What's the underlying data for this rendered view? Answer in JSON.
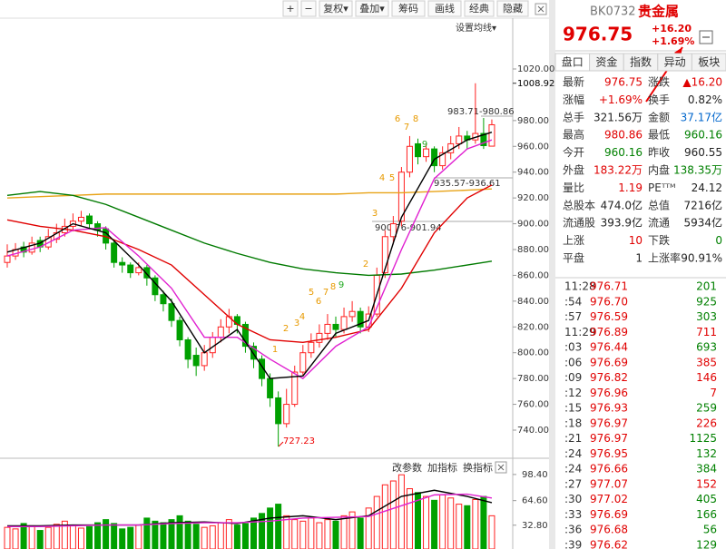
{
  "toolbar": {
    "buttons": [
      "+",
      "−",
      "复权▾",
      "叠加▾",
      "筹码",
      "画线",
      "经典",
      "隐藏"
    ],
    "ma_settings": "设置均线▾"
  },
  "chart_data": {
    "type": "candlestick",
    "candles": [
      [
        870,
        884,
        866,
        875
      ],
      [
        875,
        885,
        872,
        880
      ],
      [
        882,
        886,
        874,
        878
      ],
      [
        878,
        890,
        876,
        885
      ],
      [
        887,
        890,
        878,
        882
      ],
      [
        882,
        896,
        880,
        890
      ],
      [
        888,
        900,
        885,
        893
      ],
      [
        893,
        904,
        890,
        898
      ],
      [
        898,
        908,
        894,
        902
      ],
      [
        902,
        910,
        898,
        905
      ],
      [
        906,
        908,
        896,
        900
      ],
      [
        900,
        902,
        890,
        895
      ],
      [
        896,
        898,
        880,
        885
      ],
      [
        885,
        888,
        866,
        870
      ],
      [
        870,
        874,
        862,
        868
      ],
      [
        868,
        870,
        858,
        862
      ],
      [
        862,
        870,
        860,
        866
      ],
      [
        866,
        868,
        852,
        858
      ],
      [
        858,
        860,
        840,
        845
      ],
      [
        845,
        848,
        832,
        838
      ],
      [
        838,
        842,
        820,
        825
      ],
      [
        825,
        828,
        805,
        810
      ],
      [
        810,
        812,
        788,
        795
      ],
      [
        798,
        804,
        782,
        790
      ],
      [
        790,
        806,
        786,
        800
      ],
      [
        800,
        816,
        796,
        812
      ],
      [
        812,
        826,
        808,
        820
      ],
      [
        820,
        834,
        815,
        828
      ],
      [
        828,
        830,
        815,
        822
      ],
      [
        822,
        824,
        800,
        805
      ],
      [
        805,
        808,
        788,
        795
      ],
      [
        795,
        798,
        774,
        780
      ],
      [
        780,
        784,
        758,
        765
      ],
      [
        765,
        770,
        727.23,
        745
      ],
      [
        745,
        772,
        742,
        760
      ],
      [
        760,
        790,
        758,
        785
      ],
      [
        785,
        806,
        782,
        800
      ],
      [
        800,
        815,
        796,
        808
      ],
      [
        808,
        822,
        804,
        815
      ],
      [
        815,
        830,
        810,
        822
      ],
      [
        822,
        828,
        812,
        818
      ],
      [
        818,
        835,
        815,
        828
      ],
      [
        828,
        840,
        824,
        832
      ],
      [
        832,
        835,
        815,
        820
      ],
      [
        820,
        836,
        816,
        830
      ],
      [
        830,
        866,
        828,
        860
      ],
      [
        862,
        895,
        858,
        890
      ],
      [
        890,
        906,
        884,
        900
      ],
      [
        902,
        944,
        898,
        940
      ],
      [
        940,
        968,
        936,
        960
      ],
      [
        962,
        966,
        946,
        952
      ],
      [
        952,
        962,
        948,
        958
      ],
      [
        958,
        960,
        940,
        945
      ],
      [
        945,
        960,
        942,
        955
      ],
      [
        955,
        968,
        950,
        962
      ],
      [
        962,
        975,
        958,
        968
      ],
      [
        968,
        972,
        958,
        965
      ],
      [
        965,
        1008.92,
        962,
        970
      ],
      [
        970,
        982,
        958,
        960.55
      ],
      [
        960.16,
        980.86,
        960.16,
        976.75
      ]
    ],
    "ylim": [
      721.7,
      1059.4
    ],
    "yticks": [
      {
        "value": 740,
        "label": "740.00"
      },
      {
        "value": 760,
        "label": "760.00"
      },
      {
        "value": 780,
        "label": "780.00"
      },
      {
        "value": 800,
        "label": "800.00"
      },
      {
        "value": 820,
        "label": "820.00"
      },
      {
        "value": 840,
        "label": "840.00"
      },
      {
        "value": 860,
        "label": "860.00"
      },
      {
        "value": 880,
        "label": "880.00"
      },
      {
        "value": 900,
        "label": "900.00"
      },
      {
        "value": 920,
        "label": "920.00"
      },
      {
        "value": 940,
        "label": "940.00"
      },
      {
        "value": 960,
        "label": "960.00"
      },
      {
        "value": 980,
        "label": "980.00"
      },
      {
        "value": 1020,
        "label": "1020.00"
      }
    ],
    "max_label": {
      "value": 1008.92,
      "label": "1008.92"
    },
    "ma_x": [
      0,
      4,
      8,
      12,
      16,
      20,
      24,
      28,
      32,
      36,
      40,
      44,
      48,
      52,
      56,
      59
    ],
    "ma_series": [
      {
        "color": "#e8a317",
        "values": [
          920,
          921,
          922,
          923,
          923,
          923,
          923,
          923,
          923,
          923,
          923,
          924,
          924,
          925,
          926,
          927
        ]
      },
      {
        "color": "#007a00",
        "values": [
          922,
          925,
          922,
          915,
          905,
          895,
          885,
          877,
          870,
          865,
          862,
          860,
          861,
          864,
          868,
          871
        ]
      },
      {
        "color": "#e00000",
        "values": [
          903,
          898,
          895,
          890,
          880,
          868,
          845,
          822,
          810,
          808,
          812,
          818,
          850,
          893,
          920,
          930
        ]
      },
      {
        "color": "#e020d0",
        "values": [
          875,
          882,
          895,
          897,
          875,
          850,
          812,
          812,
          795,
          780,
          805,
          820,
          880,
          935,
          958,
          965
        ]
      },
      {
        "color": "#000000",
        "values": [
          878,
          885,
          900,
          893,
          868,
          840,
          800,
          818,
          780,
          782,
          815,
          825,
          905,
          950,
          965,
          971
        ]
      }
    ],
    "annotations": [
      "983.71-980.86",
      "935.57-936.61",
      "900.76-901.94",
      "727.23"
    ],
    "td_labels": [
      "1",
      "2",
      "3",
      "4",
      "5",
      "6",
      "7",
      "8",
      "9",
      "2",
      "3",
      "4",
      "5",
      "6",
      "7",
      "8",
      "9"
    ],
    "volume": {
      "buttons": [
        "改参数",
        "加指标",
        "换指标"
      ],
      "values": [
        30,
        28,
        35,
        32,
        26,
        30,
        34,
        38,
        33,
        29,
        31,
        36,
        40,
        35,
        28,
        30,
        33,
        42,
        38,
        36,
        40,
        45,
        38,
        34,
        30,
        32,
        36,
        40,
        33,
        35,
        42,
        48,
        55,
        60,
        45,
        40,
        38,
        42,
        36,
        40,
        38,
        45,
        50,
        42,
        55,
        70,
        85,
        90,
        98,
        80,
        75,
        70,
        65,
        72,
        68,
        60,
        58,
        66,
        70,
        45
      ],
      "ylim": [
        2,
        110
      ],
      "yticks": [
        {
          "value": 32.8,
          "label": "32.80"
        },
        {
          "value": 64.6,
          "label": "64.60"
        },
        {
          "value": 98.4,
          "label": "98.40"
        }
      ],
      "ma_series": [
        {
          "color": "#000000",
          "values": [
            32,
            32,
            33,
            33,
            33,
            36,
            37,
            35,
            42,
            45,
            40,
            45,
            70,
            78,
            70,
            62
          ]
        },
        {
          "color": "#e020d0",
          "values": [
            31,
            31,
            32,
            33,
            33,
            35,
            36,
            36,
            38,
            42,
            43,
            44,
            58,
            72,
            73,
            68
          ]
        }
      ]
    }
  },
  "quote": {
    "code": "BK0732",
    "name": "贵金属",
    "price": "976.75",
    "change": "+16.20",
    "pct": "+1.69%",
    "tabs": [
      "盘口",
      "资金",
      "指数",
      "异动",
      "板块"
    ],
    "rows": [
      [
        {
          "label": "最新",
          "value": "976.75",
          "color": "red"
        },
        {
          "label": "涨跌",
          "value": "▲16.20",
          "color": "red"
        }
      ],
      [
        {
          "label": "涨幅",
          "value": "+1.69%",
          "color": "red"
        },
        {
          "label": "换手",
          "value": "0.82%",
          "color": "black"
        }
      ],
      [
        {
          "label": "总手",
          "value": "321.56万",
          "color": "black"
        },
        {
          "label": "金额",
          "value": "37.17亿",
          "color": "blue"
        }
      ],
      [
        {
          "label": "最高",
          "value": "980.86",
          "color": "red"
        },
        {
          "label": "最低",
          "value": "960.16",
          "color": "green"
        }
      ],
      [
        {
          "label": "今开",
          "value": "960.16",
          "color": "green"
        },
        {
          "label": "昨收",
          "value": "960.55",
          "color": "black"
        }
      ],
      [
        {
          "label": "外盘",
          "value": "183.22万",
          "color": "red"
        },
        {
          "label": "内盘",
          "value": "138.35万",
          "color": "green"
        }
      ],
      [
        {
          "label": "量比",
          "value": "1.19",
          "color": "red"
        },
        {
          "label": "PEᵀᵀᴹ",
          "value": "24.12",
          "color": "black"
        }
      ],
      [
        {
          "label": "总股本",
          "value": "474.0亿",
          "color": "black"
        },
        {
          "label": "总值",
          "value": "7216亿",
          "color": "black"
        }
      ],
      [
        {
          "label": "流通股",
          "value": "393.9亿",
          "color": "black"
        },
        {
          "label": "流通",
          "value": "5934亿",
          "color": "black"
        }
      ],
      [
        {
          "label": "上涨",
          "value": "10",
          "color": "red"
        },
        {
          "label": "下跌",
          "value": "0",
          "color": "green"
        }
      ],
      [
        {
          "label": "平盘",
          "value": "1",
          "color": "black"
        },
        {
          "label": "上涨率",
          "value": "90.91%",
          "color": "black"
        }
      ]
    ],
    "trades": [
      {
        "time": "11:28",
        "price": "976.71",
        "vol": "201",
        "color": "green"
      },
      {
        "time": ":54",
        "price": "976.70",
        "vol": "925",
        "color": "green"
      },
      {
        "time": ":57",
        "price": "976.59",
        "vol": "303",
        "color": "green"
      },
      {
        "time": "11:29",
        "price": "976.89",
        "vol": "711",
        "color": "red"
      },
      {
        "time": ":03",
        "price": "976.44",
        "vol": "693",
        "color": "green"
      },
      {
        "time": ":06",
        "price": "976.69",
        "vol": "385",
        "color": "red"
      },
      {
        "time": ":09",
        "price": "976.82",
        "vol": "146",
        "color": "red"
      },
      {
        "time": ":12",
        "price": "976.96",
        "vol": "7",
        "color": "red"
      },
      {
        "time": ":15",
        "price": "976.93",
        "vol": "259",
        "color": "green"
      },
      {
        "time": ":18",
        "price": "976.97",
        "vol": "226",
        "color": "red"
      },
      {
        "time": ":21",
        "price": "976.97",
        "vol": "1125",
        "color": "green"
      },
      {
        "time": ":24",
        "price": "976.95",
        "vol": "132",
        "color": "green"
      },
      {
        "time": ":24",
        "price": "976.66",
        "vol": "384",
        "color": "green"
      },
      {
        "time": ":27",
        "price": "977.07",
        "vol": "152",
        "color": "red"
      },
      {
        "time": ":30",
        "price": "977.02",
        "vol": "405",
        "color": "green"
      },
      {
        "time": ":33",
        "price": "976.69",
        "vol": "166",
        "color": "green"
      },
      {
        "time": ":36",
        "price": "976.68",
        "vol": "56",
        "color": "green"
      },
      {
        "time": ":39",
        "price": "976.62",
        "vol": "129",
        "color": "green"
      }
    ]
  }
}
